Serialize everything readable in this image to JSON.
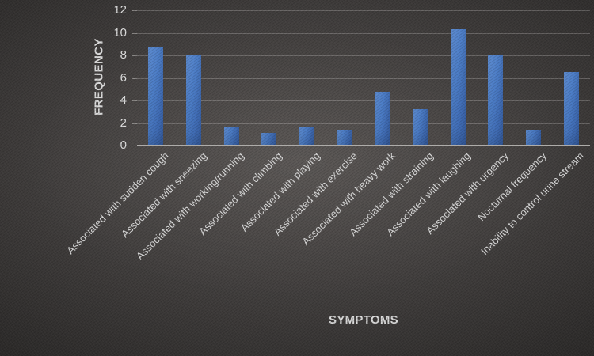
{
  "chart_data": {
    "type": "bar",
    "title": "",
    "xlabel": "SYMPTOMS",
    "ylabel": "FREQUENCY",
    "categories": [
      "Associated with sudden cough",
      "Associated with sneezing",
      "Associated with working/running",
      "Associated with climbing",
      "Associated with playing",
      "Associated with exercise",
      "Associated with heavy work",
      "Associated with straining",
      "Associated with laughing",
      "Associated with urgency",
      "Nocturnal frequency",
      "Inability to control urine stream"
    ],
    "values": [
      8.7,
      8,
      1.7,
      1.1,
      1.7,
      1.4,
      4.8,
      3.2,
      10.3,
      8,
      1.4,
      6.5
    ],
    "ylim": [
      0,
      12
    ],
    "yticks": [
      0,
      2,
      4,
      6,
      8,
      10,
      12
    ],
    "grid": true,
    "legend": "none"
  },
  "colors": {
    "background_center": "#504c4a",
    "background_edge": "#232120",
    "bar_fill": "#4a7cc8",
    "bar_fill_light": "#6191d8",
    "bar_fill_dark": "#355da2",
    "gridline": "rgba(228,226,223,0.26)",
    "axis_line": "#aeaca9",
    "text": "#d9d9d9"
  }
}
